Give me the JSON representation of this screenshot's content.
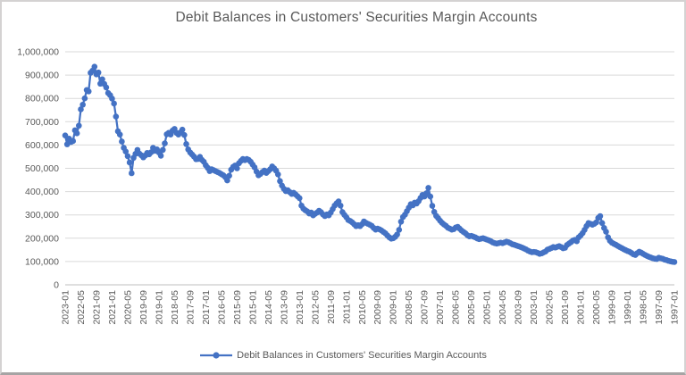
{
  "chart": {
    "colors": {
      "series": "#4472C4",
      "gridline": "#D9D9D9",
      "axis_line": "#BFBFBF",
      "axis_text": "#595959",
      "title_text": "#595959",
      "background": "#FFFFFF"
    }
  },
  "chart_data": {
    "type": "line",
    "title": "Debit Balances in Customers' Securities Margin Accounts",
    "legend_position": "bottom",
    "grid": "horizontal",
    "x_axis": {
      "label": "",
      "direction": "newest-to-oldest (left to right)",
      "start": "2023-01",
      "end": "1997-01",
      "step_months": -1,
      "tick_every_n_points": 8,
      "tick_labels": [
        "2023-01",
        "2022-05",
        "2021-09",
        "2021-01",
        "2020-05",
        "2019-09",
        "2019-01",
        "2018-05",
        "2017-09",
        "2017-01",
        "2016-05",
        "2015-09",
        "2015-01",
        "2014-05",
        "2013-09",
        "2013-01",
        "2012-05",
        "2011-09",
        "2011-01",
        "2010-05",
        "2009-09",
        "2009-01",
        "2008-05",
        "2007-09",
        "2007-01",
        "2006-05",
        "2005-09",
        "2005-01",
        "2004-05",
        "2003-09",
        "2003-01",
        "2002-05",
        "2001-09",
        "2001-01",
        "2000-05",
        "1999-09",
        "1999-01",
        "1998-05",
        "1997-09",
        "1997-01"
      ]
    },
    "y_axis": {
      "label": "",
      "min": 0,
      "max": 1000000,
      "tick_interval": 100000,
      "tick_labels_top_down": [
        "1,000,000",
        "900,000",
        "800,000",
        "700,000",
        "600,000",
        "500,000",
        "400,000",
        "300,000",
        "200,000",
        "100,000",
        "0"
      ]
    },
    "series": [
      {
        "name": "Debit Balances in Customers' Securities Margin Accounts",
        "color": "#4472C4",
        "marker": "circle",
        "values": [
          641000,
          603000,
          627000,
          613000,
          617000,
          663000,
          650000,
          683000,
          753000,
          773000,
          800000,
          836000,
          830000,
          910000,
          919000,
          936000,
          903000,
          911000,
          863000,
          882000,
          862000,
          847000,
          823000,
          814000,
          799000,
          778000,
          722000,
          659000,
          645000,
          615000,
          588000,
          572000,
          552000,
          525000,
          479000,
          545000,
          562000,
          579000,
          563000,
          556000,
          547000,
          555000,
          566000,
          560000,
          569000,
          588000,
          575000,
          581000,
          568000,
          554000,
          579000,
          607000,
          646000,
          652000,
          645000,
          662000,
          669000,
          652000,
          645000,
          654000,
          666000,
          643000,
          604000,
          581000,
          568000,
          559000,
          550000,
          539000,
          540000,
          549000,
          536000,
          528000,
          513000,
          502000,
          488000,
          496000,
          492000,
          488000,
          484000,
          480000,
          475000,
          470000,
          462000,
          448000,
          468000,
          494000,
          506000,
          512000,
          500000,
          522000,
          532000,
          540000,
          535000,
          540000,
          536000,
          528000,
          516000,
          504000,
          486000,
          470000,
          476000,
          484000,
          490000,
          480000,
          488000,
          496000,
          508000,
          500000,
          490000,
          474000,
          445000,
          426000,
          412000,
          402000,
          406000,
          398000,
          390000,
          395000,
          388000,
          380000,
          372000,
          340000,
          327000,
          320000,
          315000,
          306000,
          310000,
          298000,
          305000,
          310000,
          318000,
          312000,
          302000,
          295000,
          302000,
          298000,
          310000,
          325000,
          340000,
          350000,
          358000,
          340000,
          312000,
          300000,
          290000,
          278000,
          274000,
          268000,
          260000,
          252000,
          256000,
          252000,
          260000,
          272000,
          266000,
          262000,
          258000,
          253000,
          244000,
          237000,
          241000,
          238000,
          233000,
          227000,
          221000,
          212000,
          204000,
          198000,
          200000,
          206000,
          216000,
          236000,
          271000,
          291000,
          301000,
          316000,
          331000,
          346000,
          341000,
          353000,
          349000,
          359000,
          373000,
          386000,
          379000,
          393000,
          416000,
          379000,
          339000,
          313000,
          296000,
          286000,
          275000,
          266000,
          259000,
          253000,
          245000,
          241000,
          237000,
          239000,
          246000,
          249000,
          241000,
          233000,
          227000,
          221000,
          213000,
          208000,
          210000,
          207000,
          204000,
          199000,
          196000,
          198000,
          200000,
          197000,
          194000,
          191000,
          187000,
          182000,
          179000,
          177000,
          179000,
          181000,
          179000,
          182000,
          185000,
          183000,
          179000,
          174000,
          172000,
          169000,
          166000,
          163000,
          160000,
          156000,
          152000,
          147000,
          143000,
          140000,
          141000,
          140000,
          137000,
          133000,
          135000,
          139000,
          143000,
          151000,
          154000,
          158000,
          162000,
          160000,
          163000,
          166000,
          162000,
          157000,
          159000,
          171000,
          177000,
          183000,
          190000,
          193000,
          187000,
          204000,
          212000,
          222000,
          236000,
          252000,
          265000,
          262000,
          258000,
          262000,
          268000,
          287000,
          295000,
          265000,
          244000,
          228000,
          204000,
          189000,
          181000,
          176000,
          172000,
          167000,
          162000,
          158000,
          153000,
          149000,
          145000,
          142000,
          137000,
          131000,
          128000,
          136000,
          142000,
          138000,
          133000,
          128000,
          124000,
          120000,
          117000,
          114000,
          112000,
          111000,
          116000,
          114000,
          112000,
          108000,
          106000,
          103000,
          101000,
          99000,
          98000
        ]
      }
    ]
  }
}
